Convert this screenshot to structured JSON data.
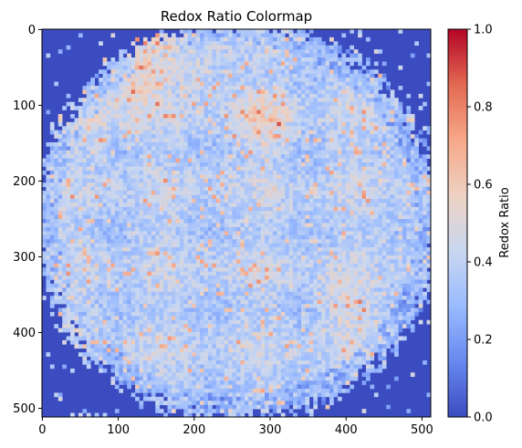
{
  "chart_data": {
    "type": "heatmap",
    "title": "Redox Ratio Colormap",
    "xlabel": "",
    "ylabel": "",
    "colorbar_label": "Redox Ratio",
    "colormap": "coolwarm",
    "x_range": [
      0,
      511
    ],
    "y_range": [
      0,
      511
    ],
    "y_inverted": true,
    "x_ticks": [
      0,
      100,
      200,
      300,
      400,
      500
    ],
    "y_ticks": [
      0,
      100,
      200,
      300,
      400,
      500
    ],
    "colorbar_range": [
      0.0,
      1.0
    ],
    "colorbar_ticks": [
      "0.0",
      "0.2",
      "0.4",
      "0.6",
      "0.8",
      "1.0"
    ],
    "background_value": 0.0,
    "grid": false,
    "colormap_stops": [
      "#3b4cc0",
      "#6788ee",
      "#9abbff",
      "#c9d7f0",
      "#edd1c2",
      "#f7a889",
      "#e26952",
      "#b40426"
    ]
  }
}
